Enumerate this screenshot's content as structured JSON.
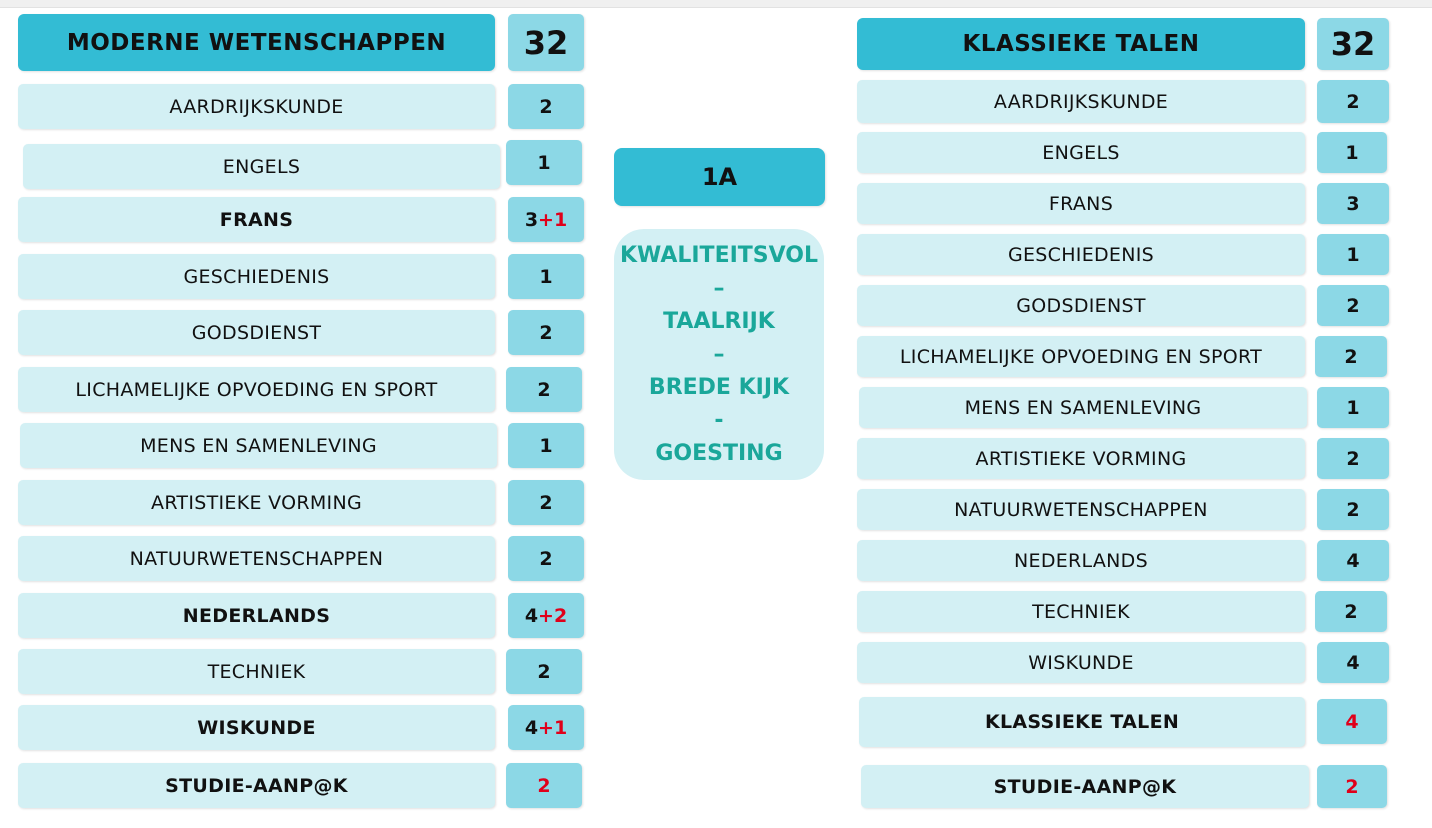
{
  "left": {
    "title": "MODERNE WETENSCHAPPEN",
    "total": "32",
    "rows": [
      {
        "subject": "AARDRIJKSKUNDE",
        "hours": "2",
        "extra": ""
      },
      {
        "subject": "ENGELS",
        "hours": "1",
        "extra": ""
      },
      {
        "subject": "FRANS",
        "hours": "3",
        "extra": "+1"
      },
      {
        "subject": "GESCHIEDENIS",
        "hours": "1",
        "extra": ""
      },
      {
        "subject": "GODSDIENST",
        "hours": "2",
        "extra": ""
      },
      {
        "subject": "LICHAMELIJKE OPVOEDING EN SPORT",
        "hours": "2",
        "extra": ""
      },
      {
        "subject": "MENS EN SAMENLEVING",
        "hours": "1",
        "extra": ""
      },
      {
        "subject": "ARTISTIEKE VORMING",
        "hours": "2",
        "extra": ""
      },
      {
        "subject": "NATUURWETENSCHAPPEN",
        "hours": "2",
        "extra": ""
      },
      {
        "subject": "NEDERLANDS",
        "hours": "4",
        "extra": "+2"
      },
      {
        "subject": "TECHNIEK",
        "hours": "2",
        "extra": ""
      },
      {
        "subject": "WISKUNDE",
        "hours": "4",
        "extra": "+1"
      },
      {
        "subject": "STUDIE-AANP@K",
        "hours": "",
        "extra": "2"
      }
    ]
  },
  "right": {
    "title": "KLASSIEKE TALEN",
    "total": "32",
    "rows": [
      {
        "subject": "AARDRIJKSKUNDE",
        "hours": "2",
        "extra": ""
      },
      {
        "subject": "ENGELS",
        "hours": "1",
        "extra": ""
      },
      {
        "subject": "FRANS",
        "hours": "3",
        "extra": ""
      },
      {
        "subject": "GESCHIEDENIS",
        "hours": "1",
        "extra": ""
      },
      {
        "subject": "GODSDIENST",
        "hours": "2",
        "extra": ""
      },
      {
        "subject": "LICHAMELIJKE OPVOEDING EN SPORT",
        "hours": "2",
        "extra": ""
      },
      {
        "subject": "MENS EN SAMENLEVING",
        "hours": "1",
        "extra": ""
      },
      {
        "subject": "ARTISTIEKE VORMING",
        "hours": "2",
        "extra": ""
      },
      {
        "subject": "NATUURWETENSCHAPPEN",
        "hours": "2",
        "extra": ""
      },
      {
        "subject": "NEDERLANDS",
        "hours": "4",
        "extra": ""
      },
      {
        "subject": "TECHNIEK",
        "hours": "2",
        "extra": ""
      },
      {
        "subject": "WISKUNDE",
        "hours": "4",
        "extra": ""
      },
      {
        "subject": "KLASSIEKE TALEN",
        "hours": "",
        "extra": "4"
      },
      {
        "subject": "STUDIE-AANP@K",
        "hours": "",
        "extra": "2"
      }
    ]
  },
  "center": {
    "label": "1A",
    "motto": [
      "KWALITEITSVOL",
      "–",
      "TAALRIJK",
      "–",
      "BREDE KIJK",
      "-",
      "GOESTING"
    ]
  },
  "colors": {
    "header": "#33bcd4",
    "cell_light": "#d3f0f4",
    "cell_hours": "#8cd8e6",
    "motto_text": "#1aa79a",
    "extra_red": "#e0001a"
  }
}
